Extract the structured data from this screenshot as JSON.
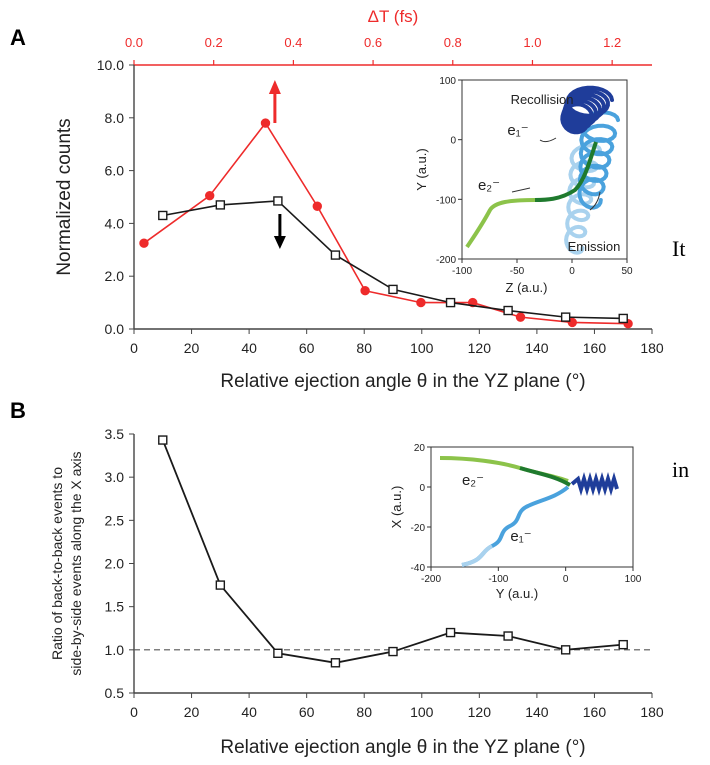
{
  "side_text": [
    "It",
    "in"
  ],
  "chart_data": [
    {
      "panel_label": "A",
      "type": "line",
      "xlabel": "Relative ejection angle θ in the YZ plane (°)",
      "ylabel": "Normalized counts",
      "top_xlabel": "ΔT (fs)",
      "xlim": [
        0,
        180
      ],
      "ylim": [
        0,
        10
      ],
      "top_xlim": [
        0,
        1.3
      ],
      "xticks": [
        0,
        20,
        40,
        60,
        80,
        100,
        120,
        140,
        160,
        180
      ],
      "yticks": [
        0,
        2,
        4,
        6,
        8,
        10
      ],
      "ytick_labels": [
        "0.0",
        "2.0",
        "4.0",
        "6.0",
        "8.0",
        "10.0"
      ],
      "top_xticks": [
        0.0,
        0.2,
        0.4,
        0.6,
        0.8,
        1.0,
        1.2
      ],
      "top_xtick_labels": [
        "0.0",
        "0.2",
        "0.4",
        "0.6",
        "0.8",
        "1.0",
        "1.2"
      ],
      "series": [
        {
          "color": "#ee2b2b",
          "marker": "circle",
          "axis": "top",
          "x": [
            0.025,
            0.19,
            0.33,
            0.46,
            0.58,
            0.72,
            0.85,
            0.97,
            1.1,
            1.24
          ],
          "y": [
            3.25,
            5.05,
            7.8,
            4.65,
            1.45,
            1.0,
            1.0,
            0.45,
            0.25,
            0.2
          ]
        },
        {
          "color": "#1a1a1a",
          "marker": "square",
          "axis": "bottom",
          "x": [
            10,
            30,
            50,
            70,
            90,
            110,
            130,
            150,
            170
          ],
          "y": [
            4.3,
            4.7,
            4.85,
            2.8,
            1.5,
            1.0,
            0.7,
            0.45,
            0.4
          ]
        }
      ],
      "annotations": {
        "up_arrow_color": "#ee2b2b",
        "down_arrow_color": "#000000",
        "arrow_x": 50
      },
      "inset": {
        "xlabel": "Z (a.u.)",
        "ylabel": "Y (a.u.)",
        "xlim": [
          -100,
          50
        ],
        "ylim": [
          -200,
          100
        ],
        "xticks": [
          -100,
          -50,
          0,
          50
        ],
        "yticks": [
          -200,
          -100,
          0,
          100
        ],
        "labels": {
          "recollision": "Recollision",
          "emission": "Emission",
          "e1": "e₁⁻",
          "e2": "e₂⁻"
        }
      }
    },
    {
      "panel_label": "B",
      "type": "line",
      "xlabel": "Relative ejection angle θ in the YZ plane (°)",
      "ylabel_lines": [
        "Ratio of back-to-back events to",
        "side-by-side events along the X axis"
      ],
      "xlim": [
        0,
        180
      ],
      "ylim": [
        0.5,
        3.5
      ],
      "xticks": [
        0,
        20,
        40,
        60,
        80,
        100,
        120,
        140,
        160,
        180
      ],
      "yticks": [
        0.5,
        1.0,
        1.5,
        2.0,
        2.5,
        3.0,
        3.5
      ],
      "ytick_labels": [
        "0.5",
        "1.0",
        "1.5",
        "2.0",
        "2.5",
        "3.0",
        "3.5"
      ],
      "reference_line": 1.0,
      "series": [
        {
          "color": "#1a1a1a",
          "marker": "square",
          "x": [
            10,
            30,
            50,
            70,
            90,
            110,
            130,
            150,
            170
          ],
          "y": [
            3.43,
            1.75,
            0.96,
            0.85,
            0.98,
            1.2,
            1.16,
            1.0,
            1.06
          ]
        }
      ],
      "inset": {
        "xlabel": "Y (a.u.)",
        "ylabel": "X (a.u.)",
        "xlim": [
          -200,
          100
        ],
        "ylim": [
          -40,
          20
        ],
        "xticks": [
          -200,
          -100,
          0,
          100
        ],
        "yticks": [
          -40,
          -20,
          0,
          20
        ],
        "labels": {
          "e1": "e₁⁻",
          "e2": "e₂⁻"
        }
      }
    }
  ]
}
